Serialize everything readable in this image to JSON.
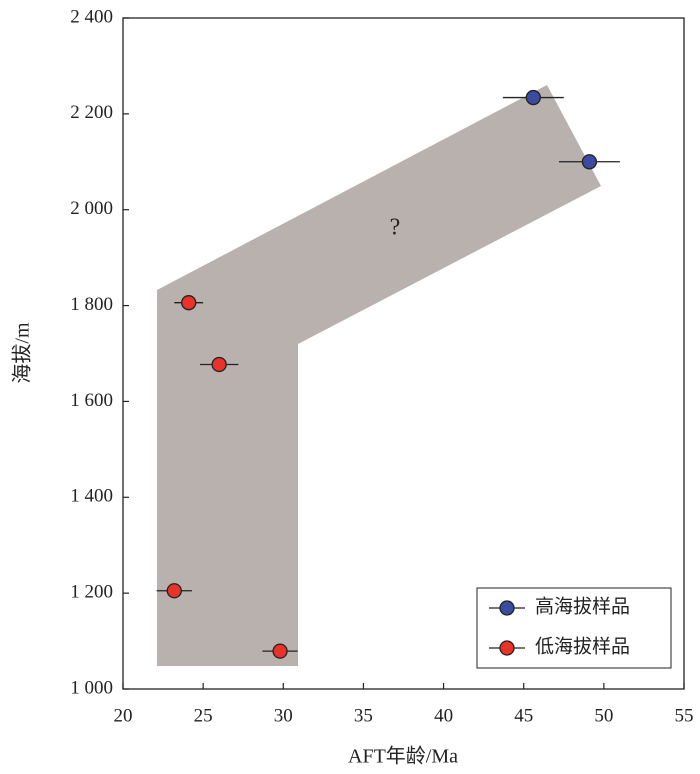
{
  "chart_data": {
    "type": "scatter",
    "x_label": "AFT年龄/Ma",
    "y_label": "海拔/m",
    "annotation": "?",
    "xlim": [
      20,
      55
    ],
    "xticks": [
      20,
      25,
      30,
      35,
      40,
      45,
      50,
      55
    ],
    "ylim": [
      1000,
      2400
    ],
    "yticks": [
      {
        "value": 1000,
        "label": "1 000"
      },
      {
        "value": 1200,
        "label": "1 200"
      },
      {
        "value": 1400,
        "label": "1 400"
      },
      {
        "value": 1600,
        "label": "1 600"
      },
      {
        "value": 1800,
        "label": "1 800"
      },
      {
        "value": 2000,
        "label": "2 000"
      },
      {
        "value": 2200,
        "label": "2 200"
      },
      {
        "value": 2400,
        "label": "2 400"
      }
    ],
    "legend_position": "lower right",
    "series": [
      {
        "name": "高海拔样品",
        "color": "#3b4ba0",
        "x": [
          45.6,
          49.1
        ],
        "y": [
          2234,
          2100
        ],
        "xerr": [
          1.9,
          1.9
        ]
      },
      {
        "name": "低海拔样品",
        "color": "#e8322a",
        "x": [
          24.1,
          26.0,
          23.2,
          29.8
        ],
        "y": [
          1806,
          1677,
          1205,
          1079
        ],
        "xerr": [
          0.9,
          1.2,
          1.1,
          1.1
        ]
      }
    ]
  }
}
